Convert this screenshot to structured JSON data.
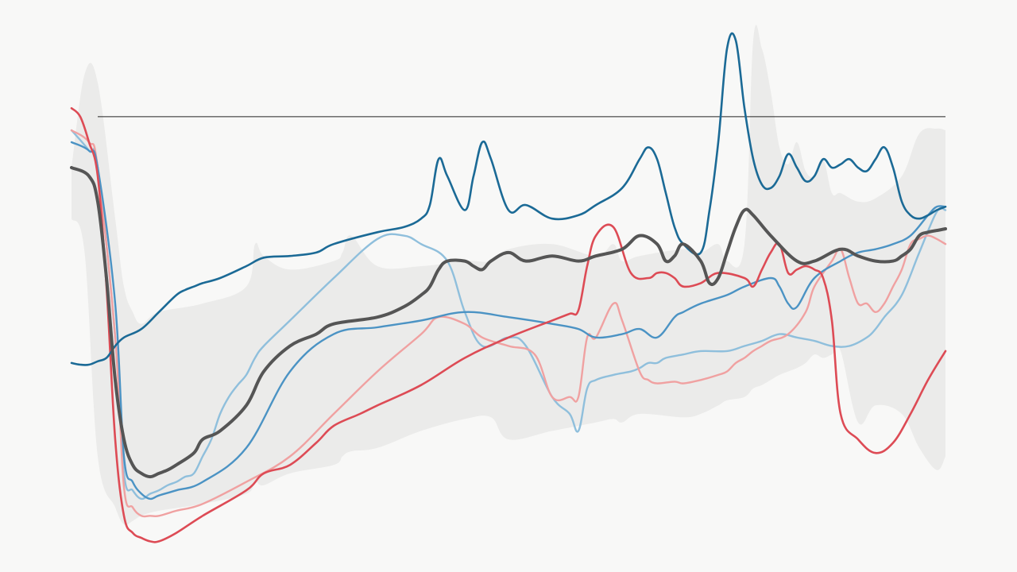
{
  "colors": {
    "background": "#f8f8f7",
    "band": "#ebebea",
    "reference_line": "#222222",
    "dark_blue": "#1b6a96",
    "light_blue": "#8fbfdc",
    "mid_blue": "#4b93c4",
    "red": "#dd4b55",
    "pink": "#f0a1a1",
    "gray": "#555555"
  },
  "chart_data": {
    "type": "line",
    "title": "",
    "xlabel": "",
    "ylabel": "",
    "xlim": [
      0,
      100
    ],
    "ylim": [
      -1.6,
      1.3
    ],
    "reference_line": {
      "y": 0.8,
      "x_from": 3
    },
    "band": {
      "name": "",
      "x": [
        0,
        1.5,
        3,
        5,
        6,
        7,
        8,
        10,
        15,
        20,
        21,
        22,
        25,
        30,
        31,
        32,
        35,
        40,
        45,
        48,
        50,
        55,
        60,
        62,
        63,
        65,
        70,
        72,
        74,
        75,
        77,
        78,
        79,
        80,
        81,
        82,
        83,
        84,
        85,
        86,
        87,
        88,
        90,
        92,
        95,
        97,
        99,
        100
      ],
      "upper": [
        0.5,
        1.05,
        1.0,
        0.2,
        -0.2,
        -0.35,
        -0.42,
        -0.35,
        -0.3,
        -0.2,
        0.05,
        -0.02,
        -0.1,
        -0.05,
        0.0,
        0.1,
        -0.08,
        -0.08,
        -0.05,
        -0.05,
        0.02,
        0.05,
        -0.02,
        0.05,
        -0.05,
        -0.02,
        0.02,
        0.0,
        0.05,
        -0.05,
        0.05,
        1.25,
        1.2,
        0.95,
        0.62,
        0.52,
        0.65,
        0.48,
        0.45,
        0.55,
        0.35,
        0.35,
        0.3,
        0.32,
        0.45,
        0.7,
        0.73,
        0.72
      ],
      "lower": [
        0.2,
        0.0,
        -1.2,
        -1.5,
        -1.6,
        -1.58,
        -1.55,
        -1.52,
        -1.48,
        -1.42,
        -1.35,
        -1.37,
        -1.3,
        -1.25,
        -1.2,
        -1.17,
        -1.15,
        -1.05,
        -0.98,
        -0.97,
        -1.1,
        -1.05,
        -1.0,
        -0.98,
        -1.0,
        -0.95,
        -0.97,
        -0.95,
        -0.9,
        -0.87,
        -0.85,
        -0.8,
        -0.78,
        -0.75,
        -0.72,
        -0.7,
        -0.68,
        -0.65,
        -0.6,
        -0.62,
        -0.6,
        -0.58,
        -1.0,
        -0.9,
        -0.95,
        -1.15,
        -1.28,
        -1.2
      ]
    },
    "series": [
      {
        "key": "light_blue",
        "name": "",
        "x": [
          0,
          2,
          3,
          5,
          6,
          7,
          8,
          9,
          10,
          11,
          12,
          13,
          14,
          15,
          16,
          17,
          18,
          19,
          20,
          21,
          22,
          25,
          30,
          35,
          38,
          40,
          43,
          45,
          47,
          50,
          52,
          55,
          57,
          58,
          59,
          60,
          62,
          64,
          65,
          66,
          67,
          68,
          70,
          72,
          75,
          77,
          79,
          81,
          83,
          85,
          87,
          89,
          91,
          92,
          93,
          95,
          97,
          99,
          100
        ],
        "y": [
          0.72,
          0.6,
          0.5,
          -0.5,
          -1.3,
          -1.4,
          -1.45,
          -1.42,
          -1.4,
          -1.37,
          -1.35,
          -1.32,
          -1.3,
          -1.2,
          -1.1,
          -0.95,
          -0.85,
          -0.78,
          -0.72,
          -0.62,
          -0.55,
          -0.4,
          -0.15,
          0.08,
          0.1,
          0.05,
          -0.05,
          -0.35,
          -0.55,
          -0.5,
          -0.55,
          -0.85,
          -0.95,
          -1.05,
          -0.8,
          -0.75,
          -0.72,
          -0.7,
          -0.68,
          -0.65,
          -0.65,
          -0.62,
          -0.6,
          -0.58,
          -0.58,
          -0.55,
          -0.52,
          -0.48,
          -0.5,
          -0.52,
          -0.55,
          -0.55,
          -0.5,
          -0.45,
          -0.38,
          -0.25,
          0.0,
          0.24,
          0.25
        ]
      },
      {
        "key": "pink",
        "name": "",
        "x": [
          0,
          2,
          3,
          5,
          6,
          7,
          8,
          9,
          10,
          12,
          15,
          20,
          25,
          30,
          35,
          40,
          42,
          45,
          47,
          50,
          53,
          55,
          57,
          58,
          59,
          60,
          62,
          63,
          65,
          66,
          67,
          69,
          70,
          72,
          74,
          75,
          76,
          77,
          78,
          79,
          80,
          82,
          84,
          85,
          87,
          88,
          89,
          90,
          91,
          92,
          93,
          94,
          95,
          96,
          97,
          98,
          99,
          100
        ],
        "y": [
          0.72,
          0.65,
          0.5,
          -0.5,
          -1.38,
          -1.5,
          -1.55,
          -1.55,
          -1.55,
          -1.52,
          -1.48,
          -1.35,
          -1.2,
          -0.95,
          -0.7,
          -0.48,
          -0.38,
          -0.42,
          -0.5,
          -0.55,
          -0.6,
          -0.85,
          -0.85,
          -0.85,
          -0.5,
          -0.5,
          -0.3,
          -0.4,
          -0.7,
          -0.75,
          -0.77,
          -0.76,
          -0.77,
          -0.75,
          -0.72,
          -0.7,
          -0.65,
          -0.62,
          -0.58,
          -0.55,
          -0.52,
          -0.48,
          -0.35,
          -0.2,
          -0.05,
          0.02,
          -0.15,
          -0.3,
          -0.3,
          -0.35,
          -0.3,
          -0.2,
          -0.1,
          0.05,
          0.08,
          0.1,
          0.08,
          0.05
        ]
      },
      {
        "key": "mid_blue",
        "name": "",
        "x": [
          0,
          2,
          3,
          5,
          6,
          7,
          8,
          9,
          10,
          12,
          15,
          20,
          25,
          30,
          35,
          40,
          45,
          50,
          55,
          58,
          60,
          63,
          65,
          67,
          69,
          70,
          72,
          75,
          77,
          80,
          81,
          82,
          83,
          85,
          88,
          90,
          92,
          94,
          96,
          98,
          99,
          100
        ],
        "y": [
          0.65,
          0.6,
          0.5,
          -0.3,
          -1.2,
          -1.35,
          -1.42,
          -1.45,
          -1.43,
          -1.4,
          -1.35,
          -1.15,
          -0.7,
          -0.48,
          -0.44,
          -0.4,
          -0.35,
          -0.38,
          -0.42,
          -0.45,
          -0.5,
          -0.48,
          -0.45,
          -0.5,
          -0.38,
          -0.35,
          -0.3,
          -0.25,
          -0.2,
          -0.15,
          -0.2,
          -0.3,
          -0.32,
          -0.15,
          -0.05,
          0.0,
          0.02,
          0.05,
          0.1,
          0.22,
          0.27,
          0.27
        ]
      },
      {
        "key": "red",
        "name": "",
        "x": [
          0,
          1,
          2,
          3,
          4,
          5,
          6,
          7,
          8,
          9,
          10,
          12,
          15,
          20,
          22,
          25,
          28,
          30,
          33,
          35,
          40,
          45,
          50,
          55,
          57,
          58,
          59,
          60,
          62,
          64,
          66,
          67,
          68,
          69,
          70,
          72,
          74,
          77,
          78,
          79,
          80,
          81,
          82,
          83,
          84,
          85,
          86,
          87,
          88,
          90,
          92,
          94,
          96,
          98,
          100
        ],
        "y": [
          0.85,
          0.8,
          0.65,
          0.45,
          -0.2,
          -1.1,
          -1.55,
          -1.65,
          -1.68,
          -1.7,
          -1.7,
          -1.65,
          -1.55,
          -1.4,
          -1.3,
          -1.25,
          -1.12,
          -1.02,
          -0.95,
          -0.9,
          -0.78,
          -0.62,
          -0.5,
          -0.4,
          -0.36,
          -0.34,
          -0.08,
          0.1,
          0.15,
          -0.12,
          -0.15,
          -0.12,
          -0.12,
          -0.15,
          -0.2,
          -0.18,
          -0.12,
          -0.15,
          -0.2,
          -0.1,
          0.0,
          0.05,
          -0.12,
          -0.1,
          -0.08,
          -0.1,
          -0.15,
          -0.4,
          -0.95,
          -1.1,
          -1.18,
          -1.12,
          -0.95,
          -0.75,
          -0.58
        ]
      },
      {
        "key": "dark_blue",
        "name": "",
        "x": [
          0,
          1,
          2,
          3,
          4,
          5,
          6,
          8,
          10,
          12,
          13,
          14,
          15,
          17,
          20,
          22,
          25,
          28,
          30,
          35,
          38,
          40,
          41,
          42,
          43,
          45,
          46,
          47,
          48,
          50,
          52,
          55,
          58,
          60,
          63,
          65,
          66,
          67,
          68,
          69,
          70,
          72,
          73,
          74,
          75,
          76,
          77,
          78,
          79,
          80,
          81,
          82,
          83,
          84,
          85,
          86,
          87,
          88,
          89,
          90,
          91,
          92,
          93,
          94,
          95,
          96,
          97,
          98,
          99,
          100
        ],
        "y": [
          -0.65,
          -0.66,
          -0.66,
          -0.64,
          -0.62,
          -0.55,
          -0.5,
          -0.45,
          -0.35,
          -0.25,
          -0.22,
          -0.2,
          -0.18,
          -0.15,
          -0.08,
          -0.03,
          -0.02,
          0.0,
          0.05,
          0.12,
          0.15,
          0.2,
          0.28,
          0.55,
          0.45,
          0.25,
          0.45,
          0.65,
          0.55,
          0.25,
          0.28,
          0.2,
          0.22,
          0.28,
          0.38,
          0.55,
          0.62,
          0.55,
          0.35,
          0.15,
          0.05,
          0.0,
          0.25,
          0.65,
          1.2,
          1.25,
          0.85,
          0.55,
          0.4,
          0.38,
          0.45,
          0.58,
          0.5,
          0.42,
          0.45,
          0.55,
          0.5,
          0.52,
          0.55,
          0.5,
          0.48,
          0.55,
          0.62,
          0.5,
          0.3,
          0.22,
          0.2,
          0.22,
          0.25,
          0.27
        ]
      },
      {
        "key": "gray",
        "name": "",
        "x": [
          0,
          2,
          3,
          4,
          5,
          6,
          7,
          8,
          9,
          10,
          11,
          12,
          14,
          15,
          17,
          20,
          22,
          25,
          28,
          30,
          35,
          38,
          40,
          41,
          42,
          43,
          45,
          46,
          47,
          48,
          50,
          52,
          55,
          58,
          60,
          63,
          65,
          67,
          68,
          69,
          70,
          72,
          73,
          74,
          75,
          76,
          77,
          78,
          80,
          83,
          85,
          88,
          90,
          92,
          94,
          95,
          96,
          97,
          98,
          99,
          100
        ],
        "y": [
          0.5,
          0.45,
          0.3,
          -0.15,
          -0.75,
          -1.1,
          -1.25,
          -1.3,
          -1.32,
          -1.3,
          -1.28,
          -1.25,
          -1.18,
          -1.1,
          -1.05,
          -0.9,
          -0.7,
          -0.55,
          -0.48,
          -0.42,
          -0.38,
          -0.32,
          -0.25,
          -0.2,
          -0.1,
          -0.05,
          -0.05,
          -0.08,
          -0.1,
          -0.05,
          0.0,
          -0.05,
          -0.02,
          -0.05,
          -0.02,
          0.02,
          0.1,
          0.05,
          -0.05,
          -0.02,
          0.05,
          -0.05,
          -0.18,
          -0.15,
          0.0,
          0.15,
          0.25,
          0.22,
          0.1,
          -0.05,
          -0.05,
          0.02,
          -0.02,
          -0.05,
          -0.05,
          -0.02,
          0.02,
          0.1,
          0.12,
          0.13,
          0.14
        ]
      }
    ]
  }
}
